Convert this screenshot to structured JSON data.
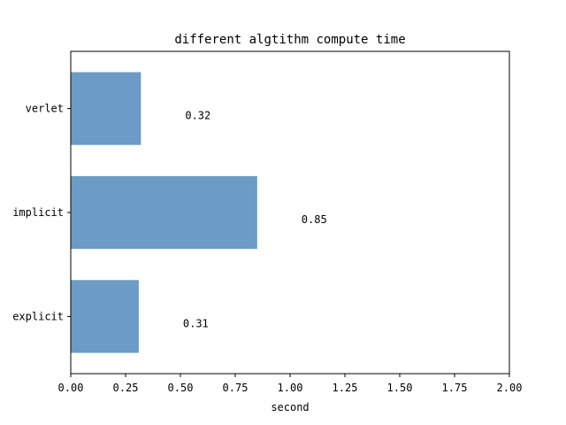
{
  "chart_data": {
    "type": "bar",
    "orientation": "horizontal",
    "title": "different algtithm compute time",
    "xlabel": "second",
    "ylabel": "",
    "categories": [
      "explicit",
      "implicit",
      "verlet"
    ],
    "values": [
      0.31,
      0.85,
      0.32
    ],
    "data_labels": [
      "0.31",
      "0.85",
      "0.32"
    ],
    "xlim": [
      0,
      2
    ],
    "xticks": [
      "0.00",
      "0.25",
      "0.50",
      "0.75",
      "1.00",
      "1.25",
      "1.50",
      "1.75",
      "2.00"
    ],
    "grid": false,
    "bar_color": "#6b9bc6"
  }
}
